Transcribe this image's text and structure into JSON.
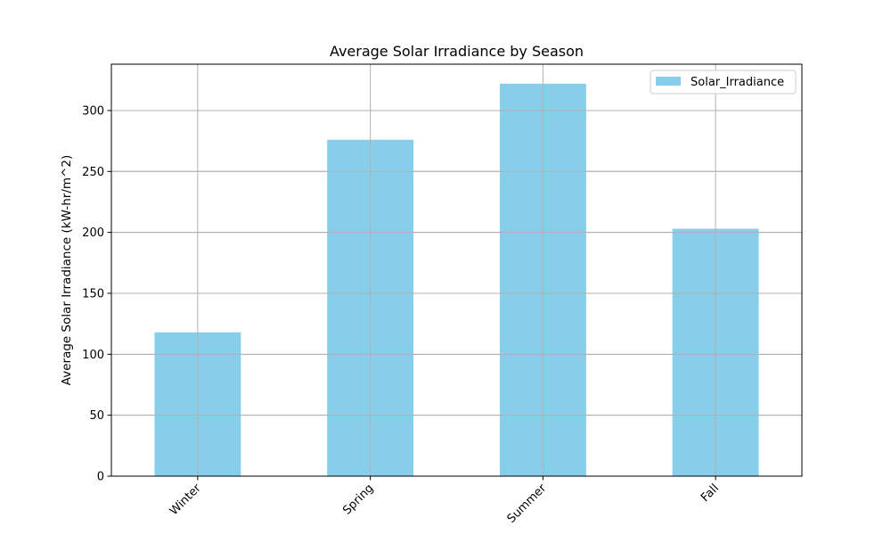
{
  "chart_data": {
    "type": "bar",
    "title": "Average Solar Irradiance by Season",
    "xlabel": "",
    "ylabel": "Average Solar Irradiance (kW-hr/m^2)",
    "categories": [
      "Winter",
      "Spring",
      "Summer",
      "Fall"
    ],
    "series": [
      {
        "name": "Solar_Irradiance",
        "values": [
          118,
          276,
          322,
          203
        ],
        "color": "#87ceeb"
      }
    ],
    "ylim": [
      0,
      338
    ],
    "yticks": [
      0,
      50,
      100,
      150,
      200,
      250,
      300
    ],
    "xtick_rotation_deg": 45,
    "grid": true,
    "legend_position": "upper right"
  }
}
